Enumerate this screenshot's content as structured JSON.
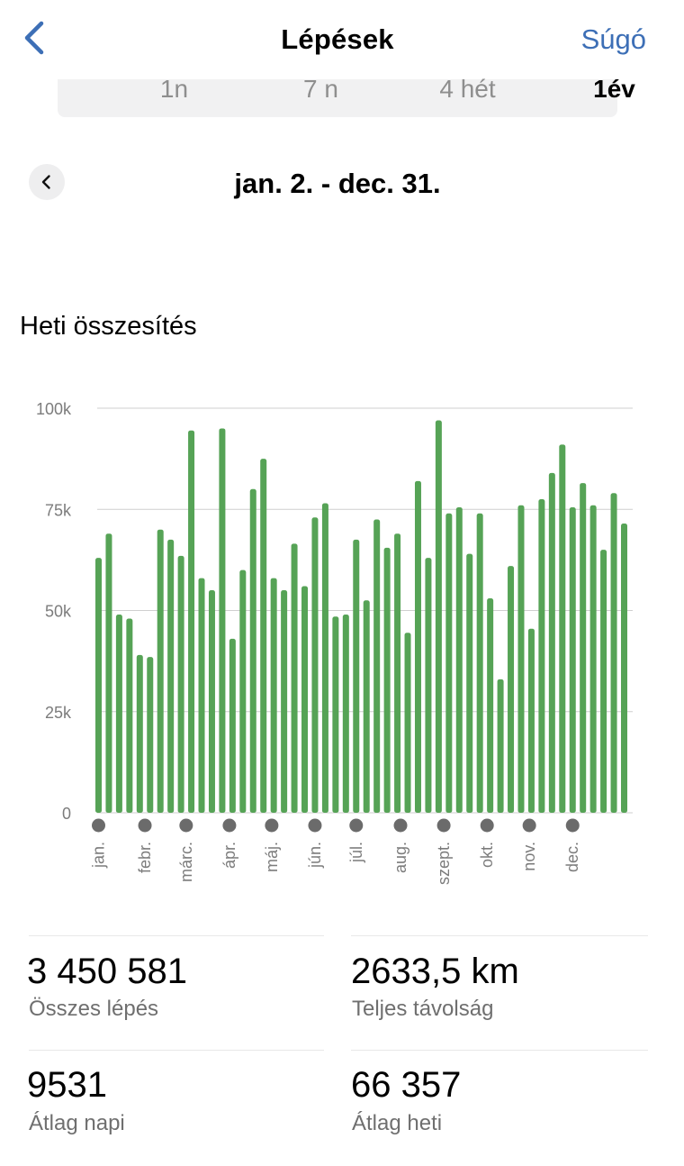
{
  "nav": {
    "back_icon": "chevron-left-icon",
    "title": "Lépések",
    "help_label": "Súgó",
    "accent_color": "#3d6fb6"
  },
  "tabs": [
    {
      "label": "1n",
      "selected": false
    },
    {
      "label": "7 n",
      "selected": false
    },
    {
      "label": "4 hét",
      "selected": false
    },
    {
      "label": "1év",
      "selected": true
    }
  ],
  "date_nav": {
    "prev_icon": "chevron-left-icon",
    "range": "jan. 2. - dec. 31."
  },
  "section_title": "Heti összesítés",
  "chart_data": {
    "type": "bar",
    "title": "",
    "xlabel": "",
    "ylabel": "",
    "ylim": [
      0,
      100000
    ],
    "yticks": [
      0,
      25000,
      50000,
      75000,
      100000
    ],
    "ytick_labels": [
      "0",
      "25k",
      "50k",
      "75k",
      "100k"
    ],
    "bar_color": "#56a356",
    "grid": true,
    "values": [
      63000,
      69000,
      49000,
      48000,
      39000,
      38500,
      70000,
      67500,
      63500,
      94500,
      58000,
      55000,
      95000,
      43000,
      60000,
      80000,
      87500,
      58000,
      55000,
      66500,
      56000,
      73000,
      76500,
      48500,
      49000,
      67500,
      52500,
      72500,
      65500,
      69000,
      44500,
      82000,
      63000,
      97000,
      74000,
      75500,
      64000,
      74000,
      53000,
      33000,
      61000,
      76000,
      45500,
      77500,
      84000,
      91000,
      75500,
      81500,
      76000,
      65000,
      79000,
      71500
    ],
    "month_labels": [
      "jan.",
      "febr.",
      "márc.",
      "ápr.",
      "máj.",
      "jún.",
      "júl.",
      "aug.",
      "szept.",
      "okt.",
      "nov.",
      "dec."
    ],
    "month_start_week": [
      0,
      4.5,
      8.5,
      12.7,
      16.8,
      21,
      25,
      29.3,
      33.5,
      37.7,
      41.8,
      46
    ]
  },
  "stats": [
    {
      "value": "3 450 581",
      "label": "Összes lépés"
    },
    {
      "value": "2633,5 km",
      "label": "Teljes távolság"
    },
    {
      "value": "9531",
      "label": "Átlag napi"
    },
    {
      "value": "66 357",
      "label": "Átlag heti"
    }
  ]
}
